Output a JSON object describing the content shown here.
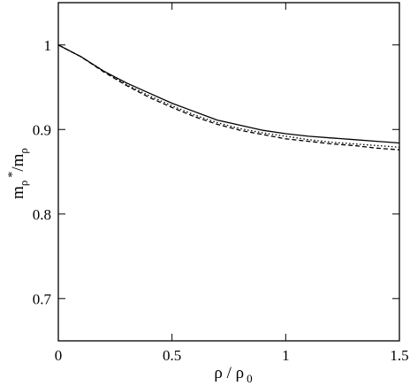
{
  "chart_data": {
    "type": "line",
    "xlabel": {
      "base": "ρ",
      "sep": " / ",
      "base2": "ρ",
      "sub2": "0"
    },
    "ylabel": {
      "base": "m",
      "sub": "ρ",
      "sup": "*",
      "sep": "/m",
      "sub2": "ρ"
    },
    "xlim": [
      0,
      1.5
    ],
    "ylim": [
      0.65,
      1.05
    ],
    "xticks": [
      0,
      0.5,
      1,
      1.5
    ],
    "xtick_labels": [
      "0",
      "0.5",
      "1",
      "1.5"
    ],
    "yticks": [
      0.7,
      0.8,
      0.9,
      1.0
    ],
    "ytick_labels": [
      "0.7",
      "0.8",
      "0.9",
      "1"
    ],
    "grid": false,
    "series": [
      {
        "style": "solid",
        "x": [
          0,
          0.1,
          0.2,
          0.3,
          0.4,
          0.5,
          0.6,
          0.7,
          0.8,
          0.9,
          1.0,
          1.1,
          1.2,
          1.3,
          1.4,
          1.5
        ],
        "y": [
          1.0,
          0.986,
          0.969,
          0.955,
          0.943,
          0.931,
          0.921,
          0.911,
          0.905,
          0.899,
          0.895,
          0.892,
          0.89,
          0.888,
          0.886,
          0.884
        ]
      },
      {
        "style": "dashed",
        "x": [
          0,
          0.1,
          0.2,
          0.3,
          0.4,
          0.5,
          0.6,
          0.7,
          0.8,
          0.9,
          1.0,
          1.1,
          1.2,
          1.3,
          1.4,
          1.5
        ],
        "y": [
          1.0,
          0.986,
          0.968,
          0.952,
          0.938,
          0.926,
          0.915,
          0.906,
          0.899,
          0.894,
          0.889,
          0.886,
          0.883,
          0.881,
          0.878,
          0.876
        ]
      },
      {
        "style": "dotted",
        "x": [
          0,
          0.1,
          0.2,
          0.3,
          0.4,
          0.5,
          0.6,
          0.7,
          0.8,
          0.9,
          1.0,
          1.1,
          1.2,
          1.3,
          1.4,
          1.5
        ],
        "y": [
          1.0,
          0.986,
          0.969,
          0.953,
          0.94,
          0.928,
          0.917,
          0.908,
          0.901,
          0.896,
          0.892,
          0.888,
          0.885,
          0.883,
          0.881,
          0.879
        ]
      }
    ]
  }
}
